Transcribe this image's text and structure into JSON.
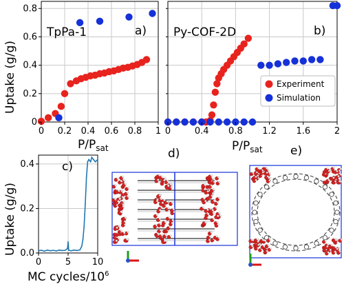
{
  "colors": {
    "experiment": "#e8231e",
    "simulation": "#1531d9",
    "trace": "#1f77b4",
    "grid": "#c8c8c8"
  },
  "labels": {
    "ylabel_top": "Uptake (g/g)",
    "ylabel_bottom": "Uptake (g/g)",
    "xlabel_a": "P/P",
    "xlabel_a_sub": "sat",
    "xlabel_b": "P/P",
    "xlabel_b_sub": "sat",
    "xlabel_c": "MC cycles/10",
    "xlabel_c_sup": "6",
    "panel_a_title": "TpPa-1",
    "panel_a_tag": "a)",
    "panel_b_title": "Py-COF-2D",
    "panel_b_tag": "b)",
    "panel_c_tag": "c)",
    "panel_d_tag": "d)",
    "panel_e_tag": "e)",
    "legend_experiment": "Experiment",
    "legend_simulation": "Simulation"
  },
  "chart_data": [
    {
      "panel": "a",
      "type": "scatter",
      "title": "TpPa-1",
      "xlabel": "P/Psat",
      "ylabel": "Uptake (g/g)",
      "xlim": [
        0,
        1
      ],
      "ylim": [
        0,
        0.85
      ],
      "xticks": [
        "0",
        "0.2",
        "0.4",
        "0.6",
        "0.8",
        "1"
      ],
      "yticks": [
        "0",
        "0.2",
        "0.4",
        "0.6",
        "0.8"
      ],
      "grid": true,
      "series": [
        {
          "name": "Experiment",
          "x": [
            0.0,
            0.06,
            0.12,
            0.17,
            0.2,
            0.25,
            0.3,
            0.34,
            0.38,
            0.42,
            0.46,
            0.5,
            0.54,
            0.58,
            0.62,
            0.66,
            0.7,
            0.74,
            0.78,
            0.82,
            0.86,
            0.9
          ],
          "y": [
            0.005,
            0.03,
            0.06,
            0.11,
            0.2,
            0.27,
            0.29,
            0.305,
            0.315,
            0.325,
            0.33,
            0.34,
            0.345,
            0.355,
            0.36,
            0.37,
            0.38,
            0.385,
            0.395,
            0.405,
            0.42,
            0.44
          ]
        },
        {
          "name": "Simulation",
          "x": [
            0.15,
            0.33,
            0.5,
            0.75,
            0.95
          ],
          "y": [
            0.03,
            0.7,
            0.71,
            0.74,
            0.765
          ]
        }
      ]
    },
    {
      "panel": "b",
      "type": "scatter",
      "title": "Py-COF-2D",
      "xlabel": "P/Psat",
      "xlim": [
        0,
        2
      ],
      "ylim": [
        0,
        0.85
      ],
      "xticks": [
        "0",
        "0.4",
        "0.8",
        "1.2",
        "1.6",
        "2"
      ],
      "grid": true,
      "legend": "center-right",
      "series": [
        {
          "name": "Experiment",
          "x": [
            0.0,
            0.1,
            0.2,
            0.3,
            0.4,
            0.45,
            0.5,
            0.52,
            0.54,
            0.56,
            0.58,
            0.6,
            0.63,
            0.66,
            0.7,
            0.74,
            0.78,
            0.82,
            0.86,
            0.9,
            0.95
          ],
          "y": [
            0.0,
            0.0,
            0.0,
            0.0,
            0.0,
            0.0,
            0.01,
            0.05,
            0.12,
            0.21,
            0.27,
            0.31,
            0.34,
            0.37,
            0.4,
            0.43,
            0.46,
            0.49,
            0.52,
            0.55,
            0.59
          ]
        },
        {
          "name": "Simulation",
          "x": [
            0.0,
            0.1,
            0.2,
            0.3,
            0.4,
            0.5,
            0.6,
            0.7,
            0.8,
            0.9,
            1.0,
            1.1,
            1.2,
            1.3,
            1.4,
            1.5,
            1.6,
            1.7,
            1.8,
            1.95,
            2.0
          ],
          "y": [
            0.0,
            0.0,
            0.0,
            0.0,
            0.0,
            0.0,
            0.0,
            0.0,
            0.0,
            0.0,
            0.0,
            0.4,
            0.4,
            0.41,
            0.42,
            0.43,
            0.43,
            0.44,
            0.44,
            0.82,
            0.82
          ]
        }
      ]
    },
    {
      "panel": "c",
      "type": "line",
      "xlabel": "MC cycles/10^6",
      "ylabel": "Uptake (g/g)",
      "xlim": [
        0,
        10
      ],
      "ylim": [
        0,
        0.44
      ],
      "xticks": [
        "0",
        "5",
        "10"
      ],
      "yticks": [
        "0.0",
        "0.2",
        "0.4"
      ],
      "grid": true,
      "series": [
        {
          "x": [
            0,
            0.5,
            1,
            1.5,
            2,
            2.5,
            3,
            3.5,
            4,
            4.5,
            4.9,
            5.0,
            5.1,
            5.5,
            6,
            6.5,
            7,
            7.3,
            7.5,
            7.7,
            7.9,
            8.1,
            8.3,
            8.5,
            8.8,
            9.0,
            9.3,
            9.6,
            10
          ],
          "y": [
            0.01,
            0.012,
            0.008,
            0.013,
            0.01,
            0.012,
            0.009,
            0.013,
            0.011,
            0.012,
            0.02,
            0.05,
            0.012,
            0.01,
            0.013,
            0.011,
            0.014,
            0.03,
            0.06,
            0.12,
            0.22,
            0.34,
            0.41,
            0.42,
            0.41,
            0.43,
            0.42,
            0.41,
            0.42
          ]
        }
      ]
    }
  ]
}
